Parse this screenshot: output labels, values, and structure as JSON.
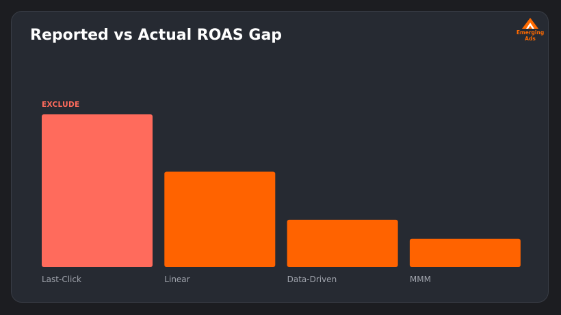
{
  "title": "Reported vs Actual ROAS Gap",
  "logo": {
    "line1": "Emerging",
    "line2": "Ads"
  },
  "colors": {
    "background": "#1c1d21",
    "card": "#262a32",
    "bar_default": "#ff6300",
    "bar_highlight": "#ff6b5c",
    "tick_label": "#a0a4ad",
    "logo": "#ff6a00"
  },
  "chart_data": {
    "type": "bar",
    "title": "Reported vs Actual ROAS Gap",
    "xlabel": "",
    "ylabel": "",
    "categories": [
      "Last-Click",
      "Linear",
      "Data-Driven",
      "MMM"
    ],
    "values": [
      100,
      62.5,
      31,
      18.5
    ],
    "ylim": [
      0,
      100
    ],
    "grid": false,
    "legend": "none",
    "highlight_index": 0,
    "annotations": [
      {
        "category": "Last-Click",
        "text": "EXCLUDE"
      }
    ]
  }
}
